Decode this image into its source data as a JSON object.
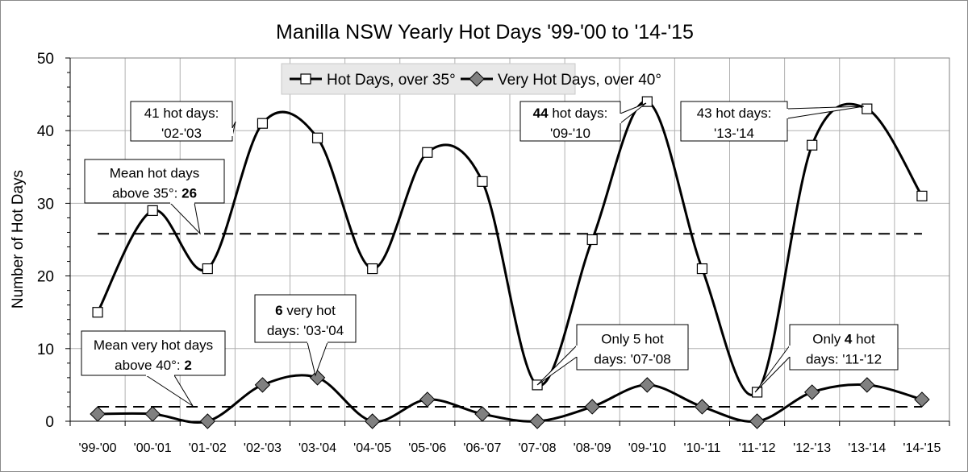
{
  "chart_data": {
    "type": "line",
    "title": "Manilla NSW Yearly Hot Days  '99-'00 to '14-'15",
    "xlabel": "",
    "ylabel": "Number of Hot Days",
    "ylim": [
      0,
      50
    ],
    "yticks": [
      "0",
      "10",
      "20",
      "30",
      "40",
      "50"
    ],
    "grid": true,
    "legend_placement": "top-center",
    "categories": [
      "'99-'00",
      "'00-'01",
      "'01-'02",
      "'02-'03",
      "'03-'04",
      "'04-'05",
      "'05-'06",
      "'06-'07",
      "'07-'08",
      "'08-'09",
      "'09-'10",
      "'10-'11",
      "'11-'12",
      "'12-'13",
      "'13-'14",
      "'14-'15"
    ],
    "series": [
      {
        "name": "Hot Days, over 35°",
        "marker": "square",
        "values": [
          15,
          29,
          21,
          41,
          39,
          21,
          37,
          33,
          5,
          25,
          44,
          21,
          4,
          38,
          43,
          31
        ]
      },
      {
        "name": "Very Hot Days, over 40°",
        "marker": "diamond",
        "color": "#808080",
        "values": [
          1,
          1,
          0,
          5,
          6,
          0,
          3,
          1,
          0,
          2,
          5,
          2,
          0,
          4,
          5,
          3
        ]
      }
    ],
    "mean_lines": [
      {
        "name": "Mean hot days above 35°",
        "value": 25.8
      },
      {
        "name": "Mean very hot days above 40°",
        "value": 2
      }
    ],
    "annotations": [
      {
        "id": "ann-41",
        "lines": [
          [
            {
              "t": "41 hot days:",
              "b": false
            }
          ],
          [
            {
              "t": "'02-'03",
              "b": false
            }
          ]
        ]
      },
      {
        "id": "ann-mean-hot",
        "lines": [
          [
            {
              "t": "Mean hot days",
              "b": false
            }
          ],
          [
            {
              "t": "above 35°: ",
              "b": false
            },
            {
              "t": "26",
              "b": true
            }
          ]
        ]
      },
      {
        "id": "ann-6",
        "lines": [
          [
            {
              "t": "6",
              "b": true
            },
            {
              "t": " very hot",
              "b": false
            }
          ],
          [
            {
              "t": "days: '03-'04",
              "b": false
            }
          ]
        ]
      },
      {
        "id": "ann-mean-very-hot",
        "lines": [
          [
            {
              "t": "Mean very hot days",
              "b": false
            }
          ],
          [
            {
              "t": "above 40°: ",
              "b": false
            },
            {
              "t": "2",
              "b": true
            }
          ]
        ]
      },
      {
        "id": "ann-44",
        "lines": [
          [
            {
              "t": "44",
              "b": true
            },
            {
              "t": " hot days:",
              "b": false
            }
          ],
          [
            {
              "t": "'09-'10",
              "b": false
            }
          ]
        ]
      },
      {
        "id": "ann-5",
        "lines": [
          [
            {
              "t": "Only 5 hot",
              "b": false
            }
          ],
          [
            {
              "t": "days: '07-'08",
              "b": false
            }
          ]
        ]
      },
      {
        "id": "ann-43",
        "lines": [
          [
            {
              "t": "43 hot days:",
              "b": false
            }
          ],
          [
            {
              "t": "'13-'14",
              "b": false
            }
          ]
        ]
      },
      {
        "id": "ann-4",
        "lines": [
          [
            {
              "t": "Only ",
              "b": false
            },
            {
              "t": "4",
              "b": true
            },
            {
              "t": " hot",
              "b": false
            }
          ],
          [
            {
              "t": "days: '11-'12",
              "b": false
            }
          ]
        ]
      }
    ]
  }
}
